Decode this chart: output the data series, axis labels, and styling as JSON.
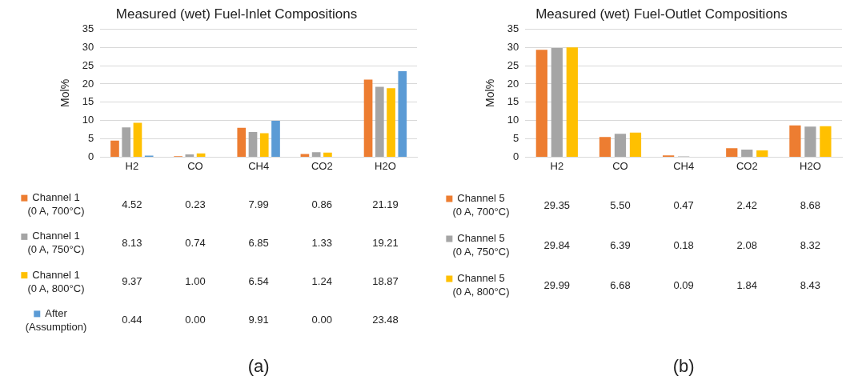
{
  "chart_data": [
    {
      "type": "bar",
      "title": "Measured (wet) Fuel-Inlet Compositions",
      "ylabel": "Mol%",
      "categories": [
        "H2",
        "CO",
        "CH4",
        "CO2",
        "H2O"
      ],
      "ylim": [
        0,
        35
      ],
      "yticks": [
        0,
        5,
        10,
        15,
        20,
        25,
        30,
        35
      ],
      "grid": "y",
      "legend": "bottom",
      "annotations": [
        "(a)"
      ],
      "series": [
        {
          "name": "Channel 1 (0 A, 700°C)",
          "color": "#ed7d31",
          "values": [
            4.52,
            0.23,
            7.99,
            0.86,
            21.19
          ],
          "value_labels": [
            "4.52",
            "0.23",
            "7.99",
            "0.86",
            "21.19"
          ]
        },
        {
          "name": "Channel 1 (0 A, 750°C)",
          "color": "#a5a5a5",
          "values": [
            8.13,
            0.74,
            6.85,
            1.33,
            19.21
          ],
          "value_labels": [
            "8.13",
            "0.74",
            "6.85",
            "1.33",
            "19.21"
          ]
        },
        {
          "name": "Channel 1 (0 A, 800°C)",
          "color": "#ffc000",
          "values": [
            9.37,
            1.0,
            6.54,
            1.24,
            18.87
          ],
          "value_labels": [
            "9.37",
            "1.00",
            "6.54",
            "1.24",
            "18.87"
          ]
        },
        {
          "name": "After (Assumption)",
          "color": "#5b9bd5",
          "values": [
            0.44,
            0.0,
            9.91,
            0.0,
            23.48
          ],
          "value_labels": [
            "0.44",
            "0.00",
            "9.91",
            "0.00",
            "23.48"
          ]
        }
      ]
    },
    {
      "type": "bar",
      "title": "Measured (wet) Fuel-Outlet Compositions",
      "ylabel": "Mol%",
      "categories": [
        "H2",
        "CO",
        "CH4",
        "CO2",
        "H2O"
      ],
      "ylim": [
        0,
        35
      ],
      "yticks": [
        0,
        5,
        10,
        15,
        20,
        25,
        30,
        35
      ],
      "grid": "y",
      "legend": "bottom",
      "annotations": [
        "(b)"
      ],
      "series": [
        {
          "name": "Channel 5 (0 A, 700°C)",
          "color": "#ed7d31",
          "values": [
            29.35,
            5.5,
            0.47,
            2.42,
            8.68
          ],
          "value_labels": [
            "29.35",
            "5.50",
            "0.47",
            "2.42",
            "8.68"
          ]
        },
        {
          "name": "Channel 5 (0 A, 750°C)",
          "color": "#a5a5a5",
          "values": [
            29.84,
            6.39,
            0.18,
            2.08,
            8.32
          ],
          "value_labels": [
            "29.84",
            "6.39",
            "0.18",
            "2.08",
            "8.32"
          ]
        },
        {
          "name": "Channel 5 (0 A, 800°C)",
          "color": "#ffc000",
          "values": [
            29.99,
            6.68,
            0.09,
            1.84,
            8.43
          ],
          "value_labels": [
            "29.99",
            "6.68",
            "0.09",
            "1.84",
            "8.43"
          ]
        }
      ]
    }
  ]
}
